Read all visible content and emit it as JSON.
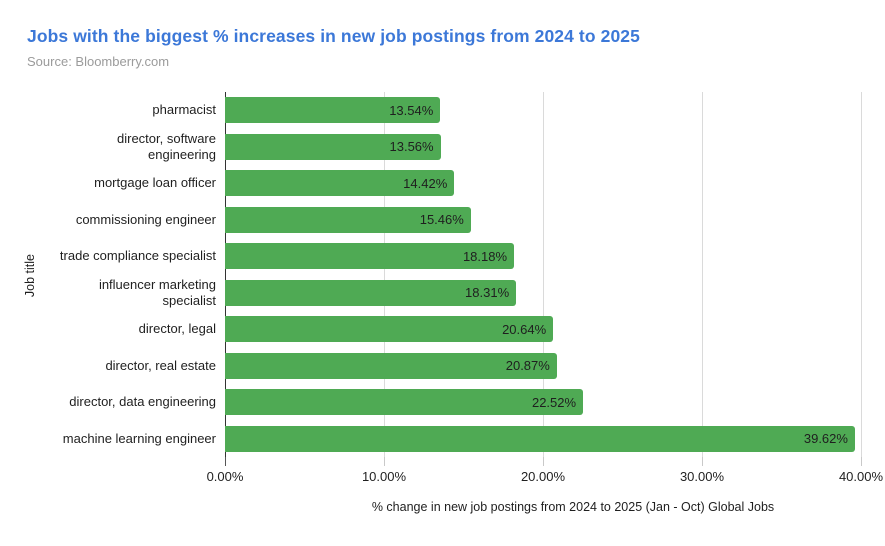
{
  "header": {
    "title": "Jobs with the biggest % increases in new job postings from 2024 to 2025",
    "source": "Source: Bloomberry.com"
  },
  "chart_data": {
    "type": "bar",
    "orientation": "horizontal",
    "title": "Jobs with the biggest % increases in new job postings from 2024 to 2025",
    "subtitle": "Source: Bloomberry.com",
    "xlabel": "% change in new job postings from 2024 to 2025 (Jan - Oct) Global Jobs",
    "ylabel": "Job title",
    "categories": [
      "pharmacist",
      "director, software engineering",
      "mortgage loan officer",
      "commissioning engineer",
      "trade compliance specialist",
      "influencer marketing specialist",
      "director, legal",
      "director, real estate",
      "director, data engineering",
      "machine learning engineer"
    ],
    "values": [
      13.54,
      13.56,
      14.42,
      15.46,
      18.18,
      18.31,
      20.64,
      20.87,
      22.52,
      39.62
    ],
    "value_labels": [
      "13.54%",
      "13.56%",
      "14.42%",
      "15.46%",
      "18.18%",
      "18.31%",
      "20.64%",
      "20.87%",
      "22.52%",
      "39.62%"
    ],
    "x_ticks": [
      {
        "label": "0.00%",
        "value": 0
      },
      {
        "label": "10.00%",
        "value": 10
      },
      {
        "label": "20.00%",
        "value": 20
      },
      {
        "label": "30.00%",
        "value": 30
      },
      {
        "label": "40.00%",
        "value": 40
      }
    ],
    "xlim": [
      0,
      40
    ],
    "grid": "vertical",
    "legend": "none",
    "colors": {
      "bar": "#4faa54",
      "title": "#3c78d8",
      "source_text": "#9b9b9b",
      "label_text": "#1f1f1f",
      "value_text": "#1f1f1f",
      "axis_line": "#333333",
      "gridline": "#dadada",
      "tick": "#c9c9c9"
    }
  }
}
